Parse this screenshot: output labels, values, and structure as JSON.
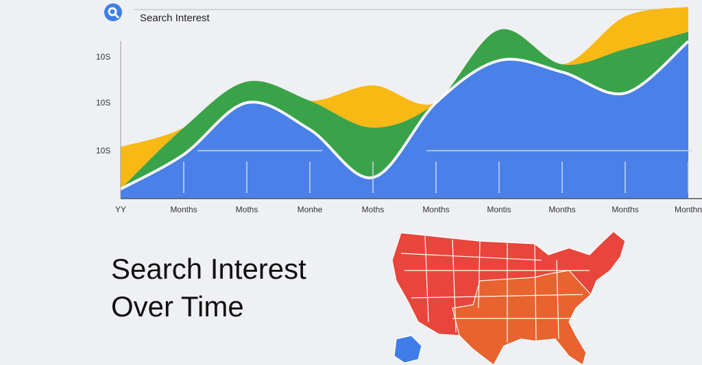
{
  "search_bar": {
    "text": "Search Interest"
  },
  "chart_data": {
    "type": "area",
    "categories": [
      "YY",
      "Months",
      "Moths",
      "Monhe",
      "Moths",
      "Months",
      "Montis",
      "Months",
      "Months",
      "Monthn"
    ],
    "series": [
      {
        "name": "blue",
        "color": "#4a80e8",
        "values": [
          5,
          23,
          50,
          36,
          11,
          50,
          72,
          66,
          55,
          82
        ]
      },
      {
        "name": "green",
        "color": "#3aa34a",
        "values": [
          0,
          14,
          11,
          15,
          26,
          0,
          16,
          4,
          23,
          5
        ]
      },
      {
        "name": "yellow",
        "color": "#f9b915",
        "values": [
          22,
          0,
          0,
          0,
          22,
          0,
          0,
          0,
          17,
          13
        ]
      }
    ],
    "ylim": [
      0,
      100
    ],
    "y_axis_texts": [
      "10S",
      "10S",
      "10S"
    ]
  },
  "heading": {
    "lines": [
      "Search Interest",
      "Over Time"
    ]
  }
}
